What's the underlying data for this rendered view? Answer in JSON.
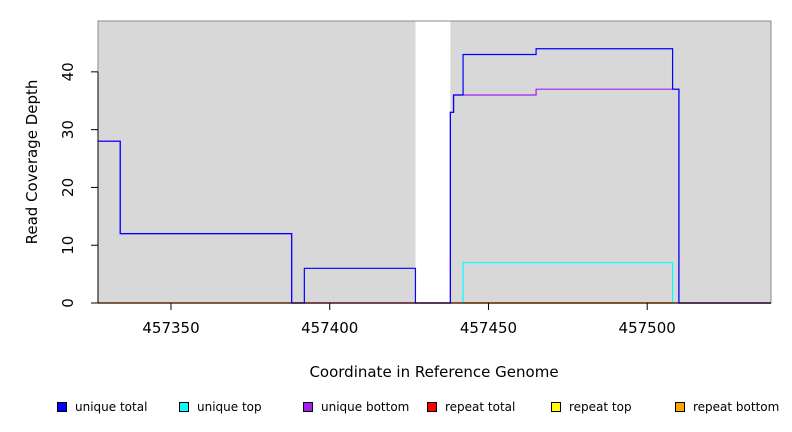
{
  "chart_data": {
    "type": "line",
    "xlabel": "Coordinate in Reference Genome",
    "ylabel": "Read Coverage Depth",
    "xlim": [
      457327,
      457539
    ],
    "ylim": [
      0,
      48.8
    ],
    "x_ticks": [
      457350,
      457400,
      457450,
      457500
    ],
    "y_ticks": [
      0,
      10,
      20,
      30,
      40
    ],
    "background": "#d8d8d8",
    "gap_regions": [
      [
        457427,
        457438
      ]
    ],
    "series": [
      {
        "name": "unique total",
        "color": "#0000ff",
        "points": [
          [
            457327,
            28
          ],
          [
            457334,
            28
          ],
          [
            457334,
            12
          ],
          [
            457388,
            12
          ],
          [
            457388,
            0
          ],
          [
            457392,
            0
          ],
          [
            457392,
            6
          ],
          [
            457427,
            6
          ],
          [
            457427,
            0
          ],
          [
            457438,
            0
          ],
          [
            457438,
            33
          ],
          [
            457439,
            33
          ],
          [
            457439,
            36
          ],
          [
            457442,
            36
          ],
          [
            457442,
            43
          ],
          [
            457465,
            43
          ],
          [
            457465,
            44
          ],
          [
            457508,
            44
          ],
          [
            457508,
            37
          ],
          [
            457510,
            37
          ],
          [
            457510,
            0
          ],
          [
            457539,
            0
          ]
        ]
      },
      {
        "name": "unique top",
        "color": "#00ffff",
        "points": [
          [
            457442,
            0
          ],
          [
            457442,
            7
          ],
          [
            457508,
            7
          ],
          [
            457508,
            0
          ]
        ]
      },
      {
        "name": "unique bottom",
        "color": "#a020f0",
        "points": [
          [
            457327,
            28
          ],
          [
            457334,
            28
          ],
          [
            457334,
            12
          ],
          [
            457388,
            12
          ],
          [
            457388,
            0
          ],
          [
            457438,
            0
          ],
          [
            457438,
            33
          ],
          [
            457439,
            33
          ],
          [
            457439,
            36
          ],
          [
            457465,
            36
          ],
          [
            457465,
            37
          ],
          [
            457510,
            37
          ],
          [
            457510,
            0
          ],
          [
            457539,
            0
          ]
        ]
      },
      {
        "name": "repeat total",
        "color": "#ff0000",
        "points": [
          [
            457327,
            0
          ],
          [
            457539,
            0
          ]
        ]
      },
      {
        "name": "repeat top",
        "color": "#ffff00",
        "points": [
          [
            457327,
            0
          ],
          [
            457539,
            0
          ]
        ]
      },
      {
        "name": "repeat bottom",
        "color": "#ffa500",
        "points": [
          [
            457442,
            0
          ],
          [
            457508,
            0
          ]
        ]
      }
    ]
  },
  "legend": [
    {
      "label": "unique total",
      "color": "#0000ff"
    },
    {
      "label": "unique top",
      "color": "#00ffff"
    },
    {
      "label": "unique bottom",
      "color": "#a020f0"
    },
    {
      "label": "repeat total",
      "color": "#ff0000"
    },
    {
      "label": "repeat top",
      "color": "#ffff00"
    },
    {
      "label": "repeat bottom",
      "color": "#ffa500"
    }
  ]
}
